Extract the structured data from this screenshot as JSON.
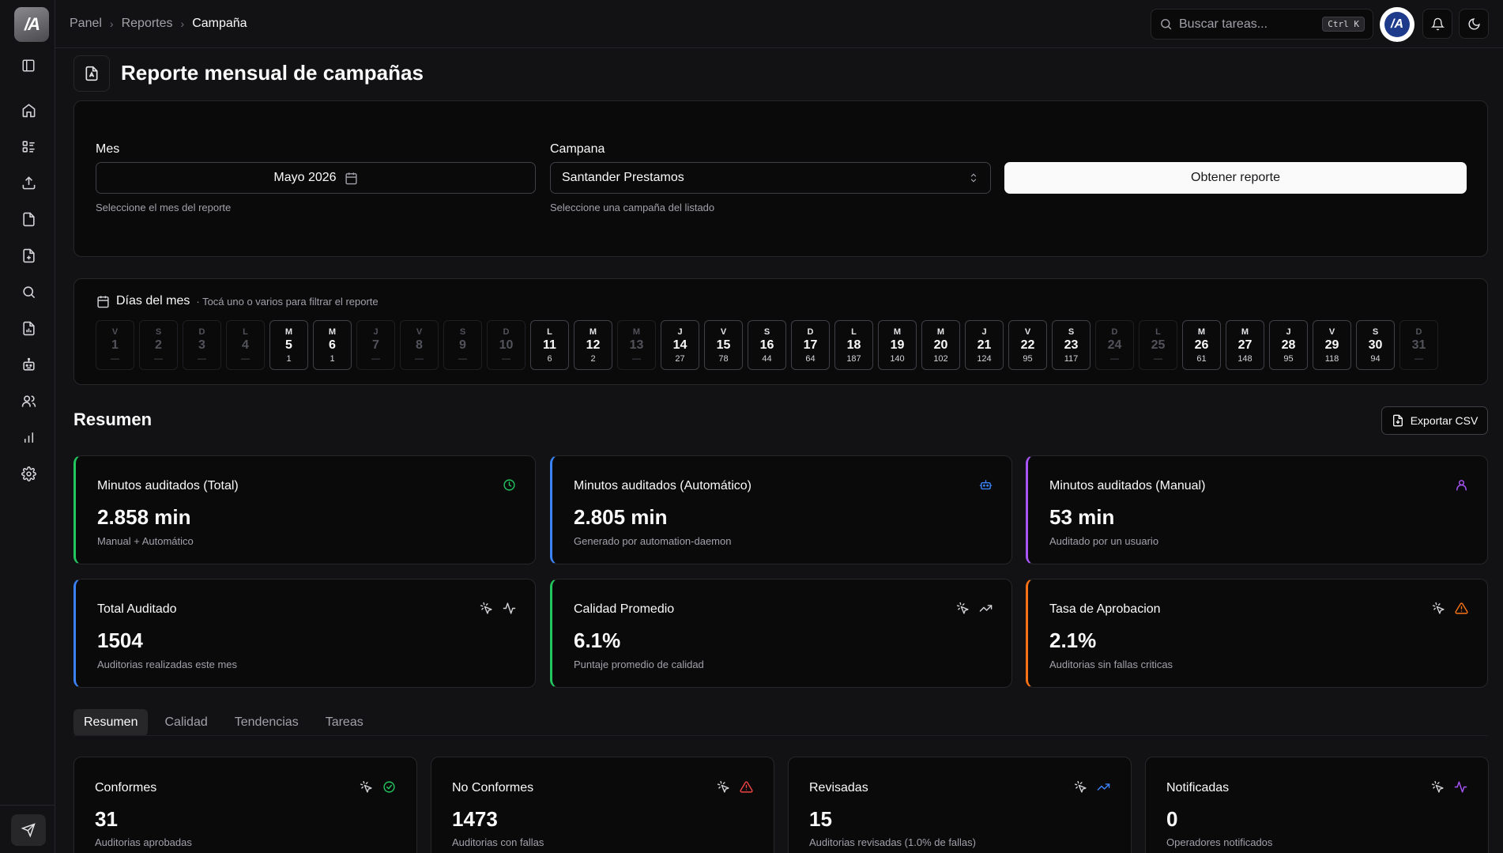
{
  "app": {
    "logo_text": "/A"
  },
  "colors": {
    "background": "#121214",
    "panel": "#0a0a0b",
    "border": "#27272a",
    "green": "#22c55e",
    "blue": "#3b82f6",
    "purple": "#a855f7",
    "orange": "#f97316",
    "red": "#ef4444"
  },
  "sidebar": {
    "items": [
      {
        "icon": "panel-toggle-icon"
      },
      {
        "icon": "home-icon"
      },
      {
        "icon": "list-icon"
      },
      {
        "icon": "upload-icon"
      },
      {
        "icon": "file-icon"
      },
      {
        "icon": "file-plus-icon"
      },
      {
        "icon": "search-icon"
      },
      {
        "icon": "file-chart-icon"
      },
      {
        "icon": "robot-icon"
      },
      {
        "icon": "users-icon"
      },
      {
        "icon": "bar-chart-icon"
      },
      {
        "icon": "gear-icon"
      }
    ],
    "footer_icon": "send-icon"
  },
  "header": {
    "breadcrumb": [
      "Panel",
      "Reportes",
      "Campaña"
    ],
    "search_placeholder": "Buscar tareas...",
    "search_shortcut": "Ctrl K",
    "avatar_text": "/A"
  },
  "page": {
    "title": "Reporte mensual de campañas"
  },
  "filters": {
    "month_label": "Mes",
    "month_value": "Mayo 2026",
    "month_hint": "Seleccione el mes del reporte",
    "campaign_label": "Campana",
    "campaign_value": "Santander Prestamos",
    "campaign_hint": "Seleccione una campaña del listado",
    "submit_label": "Obtener reporte"
  },
  "days": {
    "title": "Días del mes",
    "subtitle": "· Tocá uno o varios para filtrar el reporte",
    "items": [
      {
        "wd": "V",
        "d": "1",
        "c": "—",
        "active": false
      },
      {
        "wd": "S",
        "d": "2",
        "c": "—",
        "active": false
      },
      {
        "wd": "D",
        "d": "3",
        "c": "—",
        "active": false
      },
      {
        "wd": "L",
        "d": "4",
        "c": "—",
        "active": false
      },
      {
        "wd": "M",
        "d": "5",
        "c": "1",
        "active": true
      },
      {
        "wd": "M",
        "d": "6",
        "c": "1",
        "active": true
      },
      {
        "wd": "J",
        "d": "7",
        "c": "—",
        "active": false
      },
      {
        "wd": "V",
        "d": "8",
        "c": "—",
        "active": false
      },
      {
        "wd": "S",
        "d": "9",
        "c": "—",
        "active": false
      },
      {
        "wd": "D",
        "d": "10",
        "c": "—",
        "active": false
      },
      {
        "wd": "L",
        "d": "11",
        "c": "6",
        "active": true
      },
      {
        "wd": "M",
        "d": "12",
        "c": "2",
        "active": true
      },
      {
        "wd": "M",
        "d": "13",
        "c": "—",
        "active": false
      },
      {
        "wd": "J",
        "d": "14",
        "c": "27",
        "active": true
      },
      {
        "wd": "V",
        "d": "15",
        "c": "78",
        "active": true
      },
      {
        "wd": "S",
        "d": "16",
        "c": "44",
        "active": true
      },
      {
        "wd": "D",
        "d": "17",
        "c": "64",
        "active": true
      },
      {
        "wd": "L",
        "d": "18",
        "c": "187",
        "active": true
      },
      {
        "wd": "M",
        "d": "19",
        "c": "140",
        "active": true
      },
      {
        "wd": "M",
        "d": "20",
        "c": "102",
        "active": true
      },
      {
        "wd": "J",
        "d": "21",
        "c": "124",
        "active": true
      },
      {
        "wd": "V",
        "d": "22",
        "c": "95",
        "active": true
      },
      {
        "wd": "S",
        "d": "23",
        "c": "117",
        "active": true
      },
      {
        "wd": "D",
        "d": "24",
        "c": "—",
        "active": false
      },
      {
        "wd": "L",
        "d": "25",
        "c": "—",
        "active": false
      },
      {
        "wd": "M",
        "d": "26",
        "c": "61",
        "active": true
      },
      {
        "wd": "M",
        "d": "27",
        "c": "148",
        "active": true
      },
      {
        "wd": "J",
        "d": "28",
        "c": "95",
        "active": true
      },
      {
        "wd": "V",
        "d": "29",
        "c": "118",
        "active": true
      },
      {
        "wd": "S",
        "d": "30",
        "c": "94",
        "active": true
      },
      {
        "wd": "D",
        "d": "31",
        "c": "—",
        "active": false
      }
    ]
  },
  "summary": {
    "title": "Resumen",
    "export_label": "Exportar CSV",
    "cards": [
      {
        "title": "Minutos auditados (Total)",
        "value": "2.858 min",
        "sub": "Manual + Automático",
        "accent": "#22c55e",
        "icons": [
          "clock-icon"
        ]
      },
      {
        "title": "Minutos auditados (Automático)",
        "value": "2.805 min",
        "sub": "Generado por automation-daemon",
        "accent": "#3b82f6",
        "icons": [
          "bot-icon"
        ]
      },
      {
        "title": "Minutos auditados (Manual)",
        "value": "53 min",
        "sub": "Auditado por un usuario",
        "accent": "#a855f7",
        "icons": [
          "user-icon"
        ]
      },
      {
        "title": "Total Auditado",
        "value": "1504",
        "sub": "Auditorias realizadas este mes",
        "accent": "#3b82f6",
        "icons": [
          "pointer-click-icon",
          "activity-icon"
        ]
      },
      {
        "title": "Calidad Promedio",
        "value": "6.1%",
        "sub": "Puntaje promedio de calidad",
        "accent": "#22c55e",
        "icons": [
          "pointer-click-icon",
          "trending-up-icon"
        ]
      },
      {
        "title": "Tasa de Aprobacion",
        "value": "2.1%",
        "sub": "Auditorias sin fallas criticas",
        "accent": "#f97316",
        "icons": [
          "pointer-click-icon",
          "warning-icon"
        ]
      }
    ]
  },
  "tabs": [
    {
      "label": "Resumen",
      "active": true
    },
    {
      "label": "Calidad",
      "active": false
    },
    {
      "label": "Tendencias",
      "active": false
    },
    {
      "label": "Tareas",
      "active": false
    }
  ],
  "mini_cards": [
    {
      "title": "Conformes",
      "value": "31",
      "sub": "Auditorias aprobadas",
      "icons": [
        "pointer-click-icon",
        "check-circle-icon"
      ]
    },
    {
      "title": "No Conformes",
      "value": "1473",
      "sub": "Auditorias con fallas",
      "icons": [
        "pointer-click-icon",
        "warning-icon"
      ]
    },
    {
      "title": "Revisadas",
      "value": "15",
      "sub": "Auditorias revisadas (1.0% de fallas)",
      "icons": [
        "pointer-click-icon",
        "trending-up-icon"
      ]
    },
    {
      "title": "Notificadas",
      "value": "0",
      "sub": "Operadores notificados",
      "icons": [
        "pointer-click-icon",
        "activity-icon"
      ]
    }
  ]
}
